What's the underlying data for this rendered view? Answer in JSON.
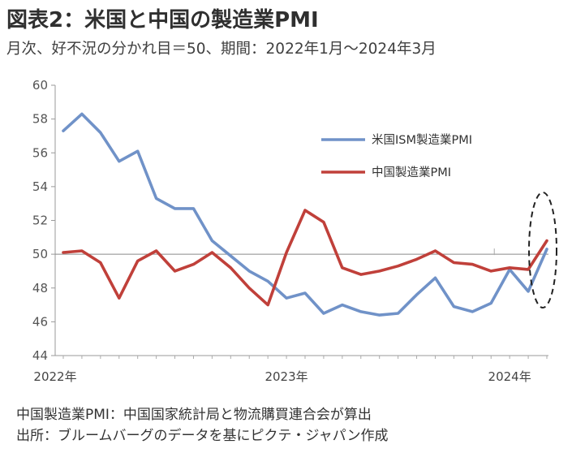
{
  "header": {
    "title": "図表2：米国と中国の製造業PMI",
    "subtitle": "月次、好不況の分かれ目＝50、期間：2022年1月～2024年3月"
  },
  "notes": [
    "中国製造業PMI：中国国家統計局と物流購買連合会が算出",
    "出所：ブルームバーグのデータを基にピクテ・ジャパン作成"
  ],
  "chart_data": {
    "type": "line",
    "x": [
      "2022-01",
      "2022-02",
      "2022-03",
      "2022-04",
      "2022-05",
      "2022-06",
      "2022-07",
      "2022-08",
      "2022-09",
      "2022-10",
      "2022-11",
      "2022-12",
      "2023-01",
      "2023-02",
      "2023-03",
      "2023-04",
      "2023-05",
      "2023-06",
      "2023-07",
      "2023-08",
      "2023-09",
      "2023-10",
      "2023-11",
      "2023-12",
      "2024-01",
      "2024-02",
      "2024-03"
    ],
    "x_tick_labels": [
      "2022年",
      "2023年",
      "2024年"
    ],
    "series": [
      {
        "name": "米国ISM製造業PMI",
        "color": "#7092c8",
        "values": [
          57.3,
          58.3,
          57.2,
          55.5,
          56.1,
          53.3,
          52.7,
          52.7,
          50.8,
          49.9,
          49.0,
          48.4,
          47.4,
          47.7,
          46.5,
          47.0,
          46.6,
          46.4,
          46.5,
          47.6,
          48.6,
          46.9,
          46.6,
          47.1,
          49.1,
          47.8,
          50.3
        ]
      },
      {
        "name": "中国製造業PMI",
        "color": "#c0403a",
        "values": [
          50.1,
          50.2,
          49.5,
          47.4,
          49.6,
          50.2,
          49.0,
          49.4,
          50.1,
          49.2,
          48.0,
          47.0,
          50.1,
          52.6,
          51.9,
          49.2,
          48.8,
          49.0,
          49.3,
          49.7,
          50.2,
          49.5,
          49.4,
          49.0,
          49.2,
          49.1,
          50.8
        ]
      }
    ],
    "ylim": [
      44,
      60
    ],
    "y_ticks": [
      44,
      46,
      48,
      50,
      52,
      54,
      56,
      58,
      60
    ],
    "reference_line": 50,
    "legend_position": "upper-right",
    "grid": false,
    "annotation": "dashed ellipse highlighting latest values (2024-03)"
  }
}
